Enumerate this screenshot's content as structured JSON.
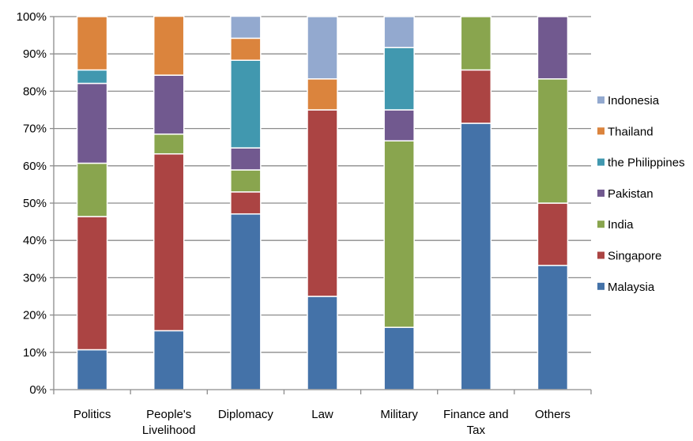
{
  "chart_data": {
    "type": "bar",
    "stacked": true,
    "percent_stacked": true,
    "categories": [
      [
        "Politics"
      ],
      [
        "People's",
        "Livelihood"
      ],
      [
        "Diplomacy"
      ],
      [
        "Law"
      ],
      [
        "Military"
      ],
      [
        "Finance and",
        "Tax"
      ],
      [
        "Others"
      ]
    ],
    "ylim": [
      0,
      100
    ],
    "yticks": [
      "0%",
      "10%",
      "20%",
      "30%",
      "40%",
      "50%",
      "60%",
      "70%",
      "80%",
      "90%",
      "100%"
    ],
    "grid": true,
    "legend_position": "right",
    "series": [
      {
        "name": "Malaysia",
        "color": "#4472a8",
        "values": [
          10.7,
          15.8,
          47.1,
          25.0,
          16.7,
          71.4,
          33.3
        ]
      },
      {
        "name": "Singapore",
        "color": "#ab4443",
        "values": [
          35.7,
          47.4,
          5.9,
          50.0,
          0.0,
          14.3,
          16.7
        ]
      },
      {
        "name": "India",
        "color": "#89a54e",
        "values": [
          14.3,
          5.3,
          5.9,
          0.0,
          50.0,
          14.3,
          33.3
        ]
      },
      {
        "name": "Pakistan",
        "color": "#71598f",
        "values": [
          21.4,
          15.8,
          5.9,
          0.0,
          8.3,
          0.0,
          16.7
        ]
      },
      {
        "name": "the Philippines",
        "color": "#4198af",
        "values": [
          3.6,
          0.0,
          23.5,
          0.0,
          16.7,
          0.0,
          0.0
        ]
      },
      {
        "name": "Thailand",
        "color": "#db843d",
        "values": [
          14.3,
          15.8,
          5.9,
          8.3,
          0.0,
          0.0,
          0.0
        ]
      },
      {
        "name": "Indonesia",
        "color": "#93a9cf",
        "values": [
          0.0,
          0.0,
          5.9,
          16.7,
          8.3,
          0.0,
          0.0
        ]
      }
    ]
  }
}
